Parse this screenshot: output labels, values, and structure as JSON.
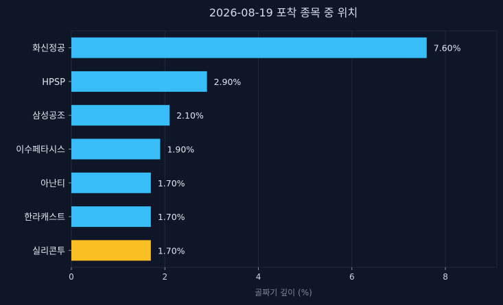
{
  "chart_data": {
    "type": "bar",
    "orientation": "horizontal",
    "title": "2026-08-19 포착 종목 중 위치",
    "xlabel": "골짜기 깊이 (%)",
    "ylabel": "",
    "xlim": [
      0,
      9.1
    ],
    "xticks": [
      0,
      2,
      4,
      6,
      8
    ],
    "grid": "vertical",
    "categories": [
      "화신정공",
      "HPSP",
      "삼성공조",
      "이수페타시스",
      "아난티",
      "한라캐스트",
      "실리콘투"
    ],
    "values": [
      7.6,
      2.9,
      2.1,
      1.9,
      1.7,
      1.7,
      1.7
    ],
    "value_labels": [
      "7.60%",
      "2.90%",
      "2.10%",
      "1.90%",
      "1.70%",
      "1.70%",
      "1.70%"
    ],
    "colors": {
      "default": "#38bdf8",
      "highlight": "#fbbf24",
      "background": "#0e1628",
      "plot_border": "#1f2a3d",
      "grid": "#1f2a3d"
    },
    "highlight_category": "실리콘투"
  }
}
